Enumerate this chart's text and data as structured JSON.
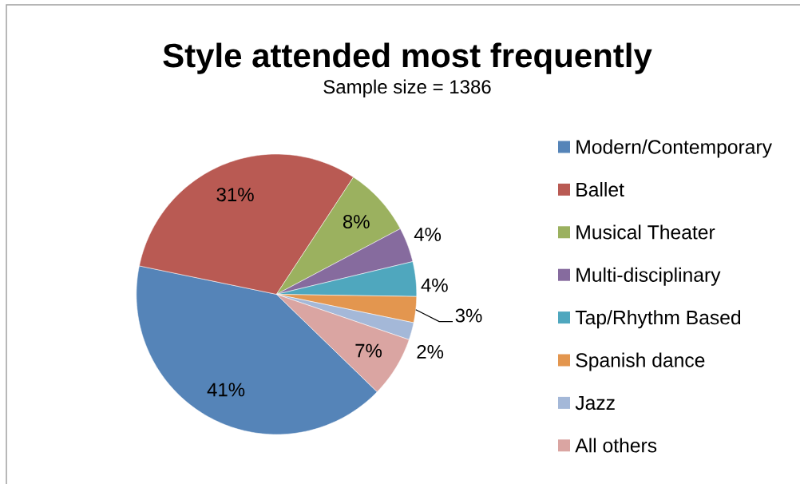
{
  "chart_data": {
    "type": "pie",
    "title": "Style attended most frequently",
    "subtitle": "Sample size = 1386",
    "categories": [
      "Modern/Contemporary",
      "Ballet",
      "Musical Theater",
      "Multi-disciplinary",
      "Tap/Rhythm Based",
      "Spanish dance",
      "Jazz",
      "All others"
    ],
    "values": [
      41,
      31,
      8,
      4,
      4,
      3,
      2,
      7
    ],
    "colors": [
      "#5584b8",
      "#b95a53",
      "#9bb15f",
      "#866b9e",
      "#4fa7be",
      "#e3964f",
      "#a4b8d8",
      "#daa5a2"
    ],
    "value_labels": [
      "41%",
      "31%",
      "8%",
      "4%",
      "4%",
      "3%",
      "2%",
      "7%"
    ],
    "legend": "right"
  }
}
